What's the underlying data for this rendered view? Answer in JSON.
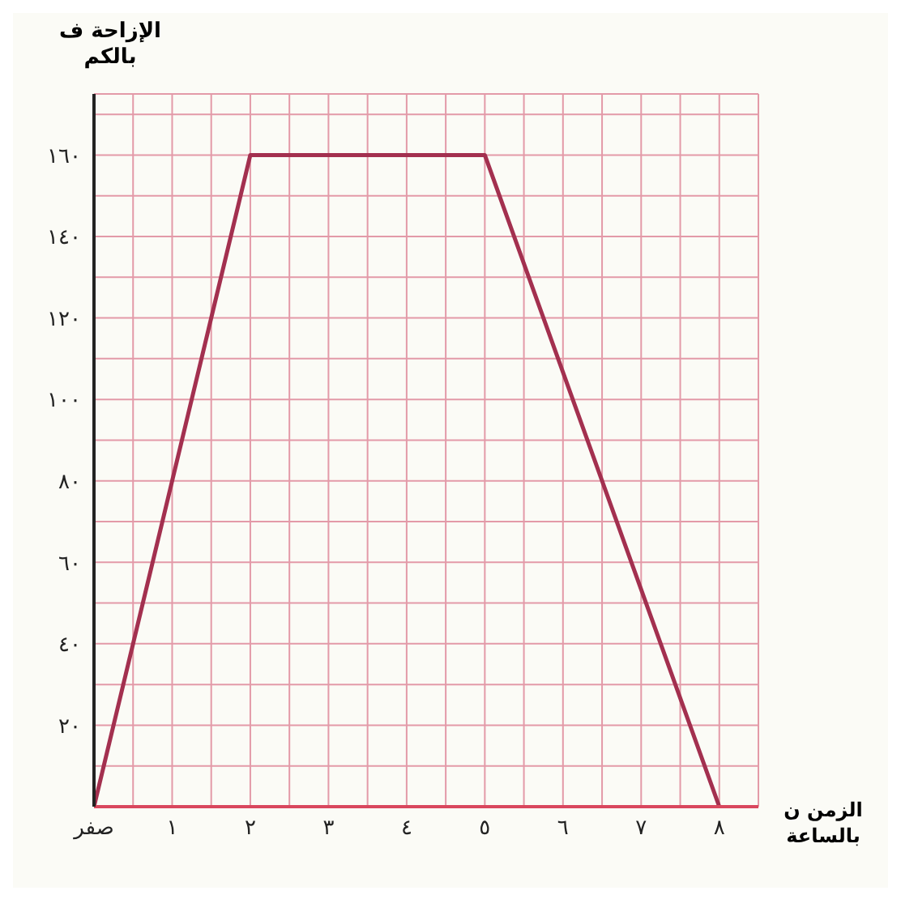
{
  "chart_data": {
    "type": "line",
    "xlabel": "الزمن ن بالساعة",
    "ylabel": "الإزاحة ف بالكم",
    "x": [
      0,
      2,
      5,
      8
    ],
    "series": [
      {
        "color": "#a3304f",
        "values": [
          0,
          160,
          160,
          0
        ]
      }
    ],
    "xlim": [
      0,
      8.5
    ],
    "ylim": [
      0,
      175
    ],
    "xticks": [
      {
        "value": 0,
        "label": "صفر"
      },
      {
        "value": 0.5,
        "label": null
      },
      {
        "value": 1,
        "label": "١"
      },
      {
        "value": 1.5,
        "label": null
      },
      {
        "value": 2,
        "label": "٢"
      },
      {
        "value": 2.5,
        "label": null
      },
      {
        "value": 3,
        "label": "٣"
      },
      {
        "value": 3.5,
        "label": null
      },
      {
        "value": 4,
        "label": "٤"
      },
      {
        "value": 4.5,
        "label": null
      },
      {
        "value": 5,
        "label": "٥"
      },
      {
        "value": 5.5,
        "label": null
      },
      {
        "value": 6,
        "label": "٦"
      },
      {
        "value": 6.5,
        "label": null
      },
      {
        "value": 7,
        "label": "٧"
      },
      {
        "value": 7.5,
        "label": null
      },
      {
        "value": 8,
        "label": "٨"
      },
      {
        "value": 8.5,
        "label": null
      }
    ],
    "yticks": [
      {
        "value": 10,
        "label": null
      },
      {
        "value": 20,
        "label": "٢٠"
      },
      {
        "value": 30,
        "label": null
      },
      {
        "value": 40,
        "label": "٤٠"
      },
      {
        "value": 50,
        "label": null
      },
      {
        "value": 60,
        "label": "٦٠"
      },
      {
        "value": 70,
        "label": null
      },
      {
        "value": 80,
        "label": "٨٠"
      },
      {
        "value": 90,
        "label": null
      },
      {
        "value": 100,
        "label": "١٠٠"
      },
      {
        "value": 110,
        "label": null
      },
      {
        "value": 120,
        "label": "١٢٠"
      },
      {
        "value": 130,
        "label": null
      },
      {
        "value": 140,
        "label": "١٤٠"
      },
      {
        "value": 150,
        "label": null
      },
      {
        "value": 160,
        "label": "١٦٠"
      },
      {
        "value": 170,
        "label": null
      }
    ],
    "grid": true,
    "marker": "none",
    "line_style": "solid",
    "legend": false
  }
}
